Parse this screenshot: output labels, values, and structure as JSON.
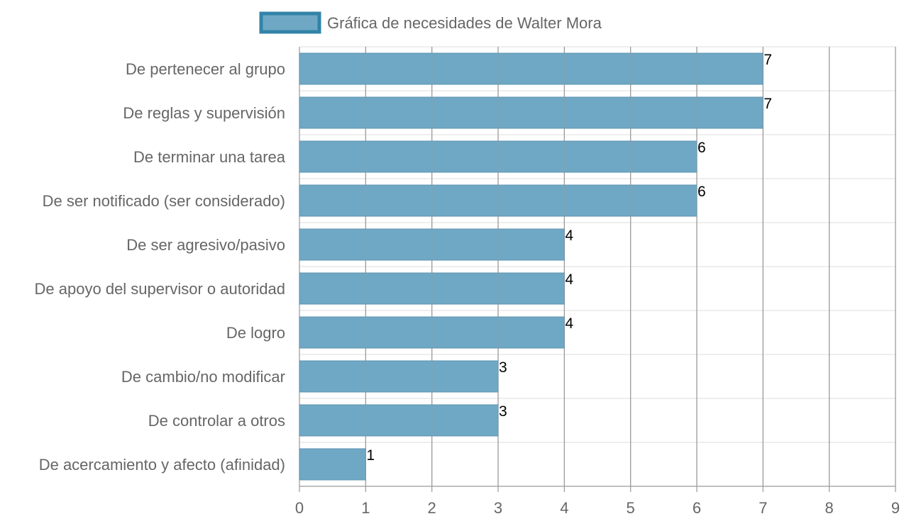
{
  "chart_data": {
    "type": "bar",
    "orientation": "horizontal",
    "categories": [
      "De pertenecer al grupo",
      "De reglas y supervisión",
      "De terminar una tarea",
      "De ser notificado (ser considerado)",
      "De ser agresivo/pasivo",
      "De apoyo del supervisor o autoridad",
      "De logro",
      "De cambio/no modificar",
      "De controlar a otros",
      "De acercamiento y afecto (afinidad)"
    ],
    "series": [
      {
        "name": "Gráfica de necesidades de Walter Mora",
        "values": [
          7,
          7,
          6,
          6,
          4,
          4,
          4,
          3,
          3,
          1
        ]
      }
    ],
    "xlim": [
      0,
      9
    ],
    "x_ticks": [
      "0",
      "1",
      "2",
      "3",
      "4",
      "5",
      "6",
      "7",
      "8",
      "9"
    ],
    "grid": true,
    "legend_position": "top",
    "data_labels": true,
    "colors": {
      "bar_fill": "#6fa8c5",
      "bar_border": "#5c93b0",
      "legend_border": "#3283a8",
      "grid_major": "#999999",
      "grid_minor": "#e3e3e3",
      "label": "#666666",
      "value_label": "#000000"
    }
  }
}
